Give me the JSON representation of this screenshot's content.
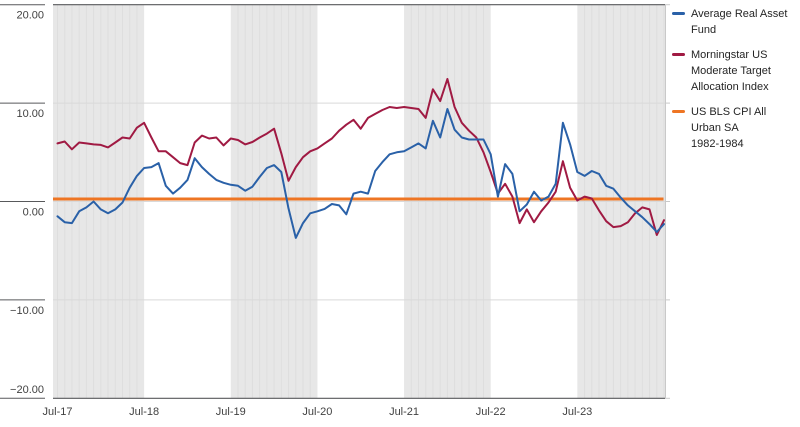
{
  "colors": {
    "fund_blue": "#2a61a8",
    "index_red": "#a01a43",
    "cpi_orange": "#ee7523",
    "band_gray": "#e7e7e7",
    "band_stripe": "#dedede",
    "grid_light": "#d9d9d9",
    "frame_dark": "#58595b",
    "right_axis": "#c9c9c9",
    "axis_text": "#414141"
  },
  "y_axis": {
    "tick_labels": [
      "20.00",
      "10.00",
      "0.00",
      "−10.00",
      "−20.00"
    ],
    "tick_values": [
      20,
      10,
      0,
      -10,
      -20
    ]
  },
  "x_axis": {
    "tick_labels": [
      "Jul-17",
      "Jul-18",
      "Jul-19",
      "Jul-20",
      "Jul-21",
      "Jul-22",
      "Jul-23"
    ]
  },
  "legend": {
    "items": [
      {
        "color_key": "fund_blue",
        "lines": [
          "Average Real Asset",
          "Fund"
        ]
      },
      {
        "color_key": "index_red",
        "lines": [
          "Morningstar US",
          "Moderate Target",
          "Allocation Index"
        ]
      },
      {
        "color_key": "cpi_orange",
        "lines": [
          "US BLS CPI All",
          "Urban SA",
          "1982-1984"
        ]
      }
    ]
  },
  "chart_data": {
    "type": "line",
    "title": "",
    "xlabel": "",
    "ylabel": "",
    "ylim": [
      -20,
      20
    ],
    "grid": "horizontal-light, alternating vertical year bands Jul-Jul",
    "legend_position": "right",
    "x_unit": "months from Jul-2017, monthly points",
    "x_tick_every": 12,
    "x_tick_labels": [
      "Jul-17",
      "Jul-18",
      "Jul-19",
      "Jul-20",
      "Jul-21",
      "Jul-22",
      "Jul-23"
    ],
    "series": [
      {
        "name": "Average Real Asset Fund",
        "color_key": "fund_blue",
        "values": [
          -1.5,
          -2.1,
          -2.2,
          -1.0,
          -0.6,
          0.0,
          -0.8,
          -1.2,
          -0.8,
          -0.1,
          1.4,
          2.6,
          3.4,
          3.5,
          3.9,
          1.6,
          0.8,
          1.4,
          2.2,
          4.4,
          3.5,
          2.8,
          2.2,
          1.9,
          1.7,
          1.6,
          1.1,
          1.5,
          2.5,
          3.4,
          3.7,
          3.0,
          -0.7,
          -3.7,
          -2.2,
          -1.2,
          -1.0,
          -0.75,
          -0.25,
          -0.4,
          -1.3,
          0.8,
          1.0,
          0.8,
          3.1,
          4.0,
          4.8,
          5.0,
          5.1,
          5.5,
          5.9,
          5.4,
          8.2,
          6.5,
          9.4,
          7.3,
          6.5,
          6.3,
          6.3,
          6.3,
          4.8,
          0.5,
          3.8,
          2.8,
          -1.0,
          -0.3,
          1.0,
          0.1,
          0.5,
          1.8,
          8.0,
          5.8,
          3.0,
          2.6,
          3.1,
          2.8,
          1.6,
          1.3,
          0.4,
          -0.4,
          -1.0,
          -1.6,
          -2.3,
          -3.1,
          -2.3
        ]
      },
      {
        "name": "Morningstar US Moderate Target Allocation Index",
        "color_key": "index_red",
        "values": [
          5.9,
          6.1,
          5.3,
          6.0,
          5.9,
          5.8,
          5.75,
          5.5,
          6.0,
          6.5,
          6.4,
          7.5,
          8.0,
          6.5,
          5.1,
          5.1,
          4.5,
          3.9,
          3.7,
          6.0,
          6.7,
          6.4,
          6.5,
          5.7,
          6.4,
          6.25,
          5.8,
          6.05,
          6.5,
          6.9,
          7.4,
          4.9,
          2.1,
          3.5,
          4.5,
          5.1,
          5.4,
          5.9,
          6.4,
          7.2,
          7.8,
          8.3,
          7.4,
          8.5,
          8.9,
          9.3,
          9.6,
          9.5,
          9.6,
          9.5,
          9.4,
          8.5,
          11.4,
          10.2,
          12.45,
          9.6,
          8.0,
          7.2,
          6.5,
          5.0,
          3.0,
          0.8,
          1.8,
          0.5,
          -2.2,
          -0.8,
          -2.1,
          -1.0,
          -0.1,
          1.0,
          4.1,
          1.4,
          0.1,
          0.5,
          0.3,
          -0.9,
          -2.0,
          -2.6,
          -2.5,
          -2.1,
          -1.2,
          -0.6,
          -0.8,
          -3.4,
          -1.9
        ]
      },
      {
        "name": "US BLS CPI All Urban SA 1982-1984",
        "color_key": "cpi_orange",
        "constant": 0.25
      }
    ]
  }
}
